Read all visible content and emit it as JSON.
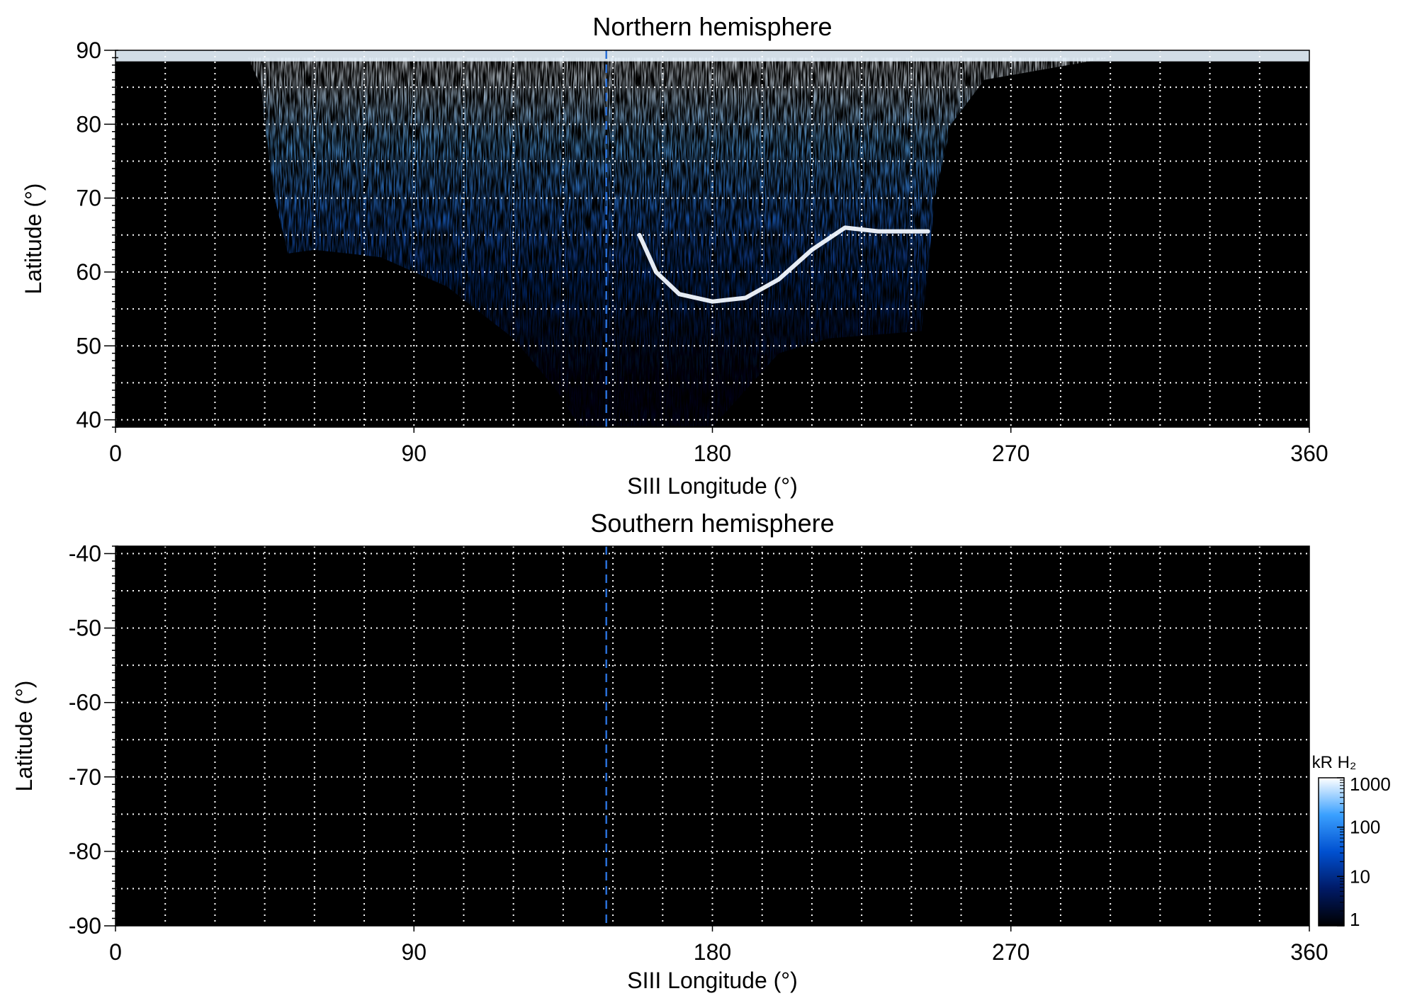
{
  "chart_data": [
    {
      "type": "heatmap",
      "title": "Northern hemisphere",
      "xlabel": "SIII Longitude (°)",
      "ylabel": "Latitude (°)",
      "xlim": [
        0,
        360
      ],
      "ylim": [
        39,
        90
      ],
      "xticks": [
        0,
        90,
        180,
        270,
        360
      ],
      "yticks": [
        40,
        50,
        60,
        70,
        80,
        90
      ],
      "grid": true,
      "reference_longitude": 148,
      "emission": {
        "region_boundary": [
          {
            "lon": 52,
            "lat": 62.5
          },
          {
            "lon": 60,
            "lat": 63
          },
          {
            "lon": 80,
            "lat": 62
          },
          {
            "lon": 100,
            "lat": 58
          },
          {
            "lon": 120,
            "lat": 51
          },
          {
            "lon": 133,
            "lat": 44
          },
          {
            "lon": 140,
            "lat": 39
          },
          {
            "lon": 180,
            "lat": 39
          },
          {
            "lon": 200,
            "lat": 49
          },
          {
            "lon": 215,
            "lat": 51
          },
          {
            "lon": 243,
            "lat": 52
          },
          {
            "lon": 245,
            "lat": 60
          },
          {
            "lon": 247,
            "lat": 70
          },
          {
            "lon": 252,
            "lat": 80
          },
          {
            "lon": 262,
            "lat": 86
          },
          {
            "lon": 300,
            "lat": 89
          },
          {
            "lon": 40,
            "lat": 89
          },
          {
            "lon": 44,
            "lat": 85
          },
          {
            "lon": 45,
            "lat": 80
          },
          {
            "lon": 48,
            "lat": 70
          }
        ],
        "main_oval": [
          {
            "lon": 158,
            "lat": 65
          },
          {
            "lon": 163,
            "lat": 60
          },
          {
            "lon": 170,
            "lat": 57
          },
          {
            "lon": 180,
            "lat": 56
          },
          {
            "lon": 190,
            "lat": 56.5
          },
          {
            "lon": 200,
            "lat": 59
          },
          {
            "lon": 210,
            "lat": 63
          },
          {
            "lon": 220,
            "lat": 66
          },
          {
            "lon": 230,
            "lat": 65.5
          },
          {
            "lon": 245,
            "lat": 65.5
          }
        ],
        "peak_brightness_kR": 1000
      }
    },
    {
      "type": "heatmap",
      "title": "Southern hemisphere",
      "xlabel": "SIII Longitude (°)",
      "ylabel": "Latitude (°)",
      "xlim": [
        0,
        360
      ],
      "ylim": [
        -90,
        -39
      ],
      "xticks": [
        0,
        90,
        180,
        270,
        360
      ],
      "yticks": [
        -40,
        -50,
        -60,
        -70,
        -80,
        -90
      ],
      "grid": true,
      "reference_longitude": 148,
      "emission": null
    }
  ],
  "colorbar": {
    "title": "kR H₂",
    "scale": "log",
    "range": [
      1,
      1000
    ],
    "ticks": [
      1,
      10,
      100,
      1000
    ],
    "colors": [
      "#000000",
      "#001a66",
      "#0050d0",
      "#3aa0ff",
      "#ffffff"
    ]
  }
}
